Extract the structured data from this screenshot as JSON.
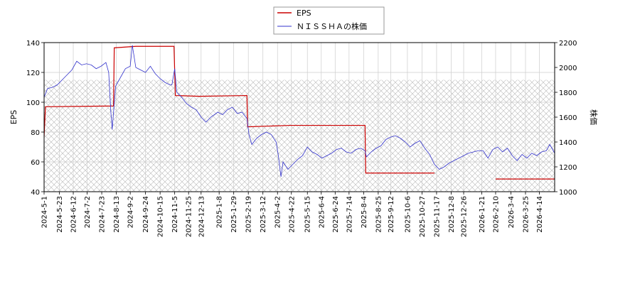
{
  "chart_data": {
    "type": "line",
    "title": "",
    "legend": {
      "placement": "top-center",
      "entries": [
        {
          "label": "EPS",
          "color": "#cc0000"
        },
        {
          "label": "ＮＩＳＳＨＡの株価",
          "color": "#3333cc"
        }
      ]
    },
    "y_left": {
      "label": "EPS",
      "range": [
        40,
        140
      ],
      "ticks": [
        "40",
        "60",
        "80",
        "100",
        "120",
        "140"
      ]
    },
    "y_right": {
      "label": "株価",
      "range": [
        1000,
        2200
      ],
      "ticks": [
        "1000",
        "1200",
        "1400",
        "1600",
        "1800",
        "2000",
        "2200"
      ]
    },
    "x_range": [
      "2024-05-01",
      "2026-05-06"
    ],
    "x_ticks": [
      "2024-5-1",
      "2024-5-23",
      "2024-6-12",
      "2024-7-2",
      "2024-7-23",
      "2024-8-13",
      "2024-9-2",
      "2024-9-24",
      "2024-10-15",
      "2024-11-5",
      "2024-11-25",
      "2024-12-13",
      "2025-1-8",
      "2025-1-29",
      "2025-2-19",
      "2025-3-12",
      "2025-4-2",
      "2025-4-22",
      "2025-5-15",
      "2025-6-4",
      "2025-6-24",
      "2025-7-14",
      "2025-8-4",
      "2025-8-25",
      "2025-9-12",
      "2025-10-6",
      "2025-10-27",
      "2025-11-17",
      "2025-12-8",
      "2025-12-26",
      "2026-1-21",
      "2026-2-10",
      "2026-3-4",
      "2026-3-25",
      "2026-4-14"
    ],
    "grid": true,
    "hatched_band": {
      "axis": "right",
      "from": 1000,
      "to": 1900
    },
    "series": [
      {
        "name": "EPS",
        "axis": "left",
        "color": "#cc0000",
        "points": [
          [
            "2024-05-01",
            77
          ],
          [
            "2024-05-03",
            97
          ],
          [
            "2024-08-09",
            97.5
          ],
          [
            "2024-08-10",
            136.5
          ],
          [
            "2024-09-10",
            137.5
          ],
          [
            "2024-11-04",
            137.5
          ],
          [
            "2024-11-06",
            104.5
          ],
          [
            "2024-12-10",
            104
          ],
          [
            "2025-02-17",
            104.5
          ],
          [
            "2025-02-18",
            83.5
          ],
          [
            "2025-04-20",
            84.5
          ],
          [
            "2025-08-06",
            84.5
          ],
          [
            "2025-08-07",
            52.5
          ],
          [
            "2025-11-14",
            52.5
          ]
        ]
      },
      {
        "name": "EPS",
        "axis": "left",
        "color": "#cc0000",
        "points": [
          [
            "2026-02-10",
            48.5
          ],
          [
            "2026-05-06",
            48.5
          ]
        ]
      },
      {
        "name": "ＮＩＳＳＨＡの株価",
        "axis": "right",
        "color": "#3333cc",
        "points": [
          [
            "2024-05-01",
            1760
          ],
          [
            "2024-05-06",
            1830
          ],
          [
            "2024-05-13",
            1840
          ],
          [
            "2024-05-20",
            1860
          ],
          [
            "2024-05-27",
            1900
          ],
          [
            "2024-06-03",
            1940
          ],
          [
            "2024-06-10",
            1980
          ],
          [
            "2024-06-17",
            2050
          ],
          [
            "2024-06-24",
            2020
          ],
          [
            "2024-07-01",
            2030
          ],
          [
            "2024-07-08",
            2020
          ],
          [
            "2024-07-15",
            1990
          ],
          [
            "2024-07-22",
            2010
          ],
          [
            "2024-07-29",
            2040
          ],
          [
            "2024-08-02",
            1960
          ],
          [
            "2024-08-05",
            1650
          ],
          [
            "2024-08-07",
            1500
          ],
          [
            "2024-08-12",
            1850
          ],
          [
            "2024-08-19",
            1920
          ],
          [
            "2024-08-26",
            1990
          ],
          [
            "2024-09-02",
            2010
          ],
          [
            "2024-09-05",
            2180
          ],
          [
            "2024-09-10",
            2000
          ],
          [
            "2024-09-17",
            1980
          ],
          [
            "2024-09-24",
            1960
          ],
          [
            "2024-10-01",
            2010
          ],
          [
            "2024-10-08",
            1950
          ],
          [
            "2024-10-15",
            1910
          ],
          [
            "2024-10-22",
            1880
          ],
          [
            "2024-10-29",
            1860
          ],
          [
            "2024-11-01",
            1860
          ],
          [
            "2024-11-05",
            1990
          ],
          [
            "2024-11-08",
            1800
          ],
          [
            "2024-11-15",
            1760
          ],
          [
            "2024-11-22",
            1710
          ],
          [
            "2024-11-29",
            1680
          ],
          [
            "2024-12-06",
            1660
          ],
          [
            "2024-12-13",
            1600
          ],
          [
            "2024-12-20",
            1560
          ],
          [
            "2024-12-27",
            1600
          ],
          [
            "2025-01-06",
            1640
          ],
          [
            "2025-01-13",
            1620
          ],
          [
            "2025-01-20",
            1660
          ],
          [
            "2025-01-27",
            1680
          ],
          [
            "2025-02-03",
            1630
          ],
          [
            "2025-02-10",
            1640
          ],
          [
            "2025-02-17",
            1590
          ],
          [
            "2025-02-20",
            1460
          ],
          [
            "2025-02-24",
            1380
          ],
          [
            "2025-03-03",
            1430
          ],
          [
            "2025-03-10",
            1460
          ],
          [
            "2025-03-17",
            1480
          ],
          [
            "2025-03-24",
            1460
          ],
          [
            "2025-03-31",
            1400
          ],
          [
            "2025-04-03",
            1300
          ],
          [
            "2025-04-07",
            1120
          ],
          [
            "2025-04-10",
            1240
          ],
          [
            "2025-04-17",
            1180
          ],
          [
            "2025-04-24",
            1220
          ],
          [
            "2025-05-01",
            1260
          ],
          [
            "2025-05-08",
            1290
          ],
          [
            "2025-05-15",
            1360
          ],
          [
            "2025-05-22",
            1320
          ],
          [
            "2025-05-29",
            1300
          ],
          [
            "2025-06-05",
            1270
          ],
          [
            "2025-06-12",
            1290
          ],
          [
            "2025-06-19",
            1310
          ],
          [
            "2025-06-26",
            1340
          ],
          [
            "2025-07-03",
            1350
          ],
          [
            "2025-07-10",
            1320
          ],
          [
            "2025-07-17",
            1310
          ],
          [
            "2025-07-24",
            1340
          ],
          [
            "2025-07-31",
            1350
          ],
          [
            "2025-08-06",
            1330
          ],
          [
            "2025-08-08",
            1280
          ],
          [
            "2025-08-15",
            1320
          ],
          [
            "2025-08-22",
            1350
          ],
          [
            "2025-08-29",
            1370
          ],
          [
            "2025-09-05",
            1420
          ],
          [
            "2025-09-12",
            1440
          ],
          [
            "2025-09-19",
            1450
          ],
          [
            "2025-09-26",
            1430
          ],
          [
            "2025-10-03",
            1400
          ],
          [
            "2025-10-10",
            1360
          ],
          [
            "2025-10-17",
            1390
          ],
          [
            "2025-10-24",
            1410
          ],
          [
            "2025-10-31",
            1350
          ],
          [
            "2025-11-07",
            1300
          ],
          [
            "2025-11-14",
            1220
          ],
          [
            "2025-11-21",
            1180
          ],
          [
            "2025-11-28",
            1200
          ],
          [
            "2025-12-05",
            1230
          ],
          [
            "2025-12-12",
            1250
          ],
          [
            "2025-12-19",
            1270
          ],
          [
            "2025-12-26",
            1290
          ],
          [
            "2026-01-02",
            1310
          ],
          [
            "2026-01-09",
            1320
          ],
          [
            "2026-01-16",
            1330
          ],
          [
            "2026-01-23",
            1330
          ],
          [
            "2026-01-30",
            1270
          ],
          [
            "2026-02-06",
            1340
          ],
          [
            "2026-02-13",
            1360
          ],
          [
            "2026-02-20",
            1320
          ],
          [
            "2026-02-27",
            1350
          ],
          [
            "2026-03-06",
            1290
          ],
          [
            "2026-03-13",
            1250
          ],
          [
            "2026-03-20",
            1300
          ],
          [
            "2026-03-27",
            1270
          ],
          [
            "2026-04-03",
            1310
          ],
          [
            "2026-04-10",
            1290
          ],
          [
            "2026-04-17",
            1320
          ],
          [
            "2026-04-24",
            1330
          ],
          [
            "2026-04-29",
            1380
          ],
          [
            "2026-05-06",
            1310
          ]
        ]
      }
    ]
  }
}
